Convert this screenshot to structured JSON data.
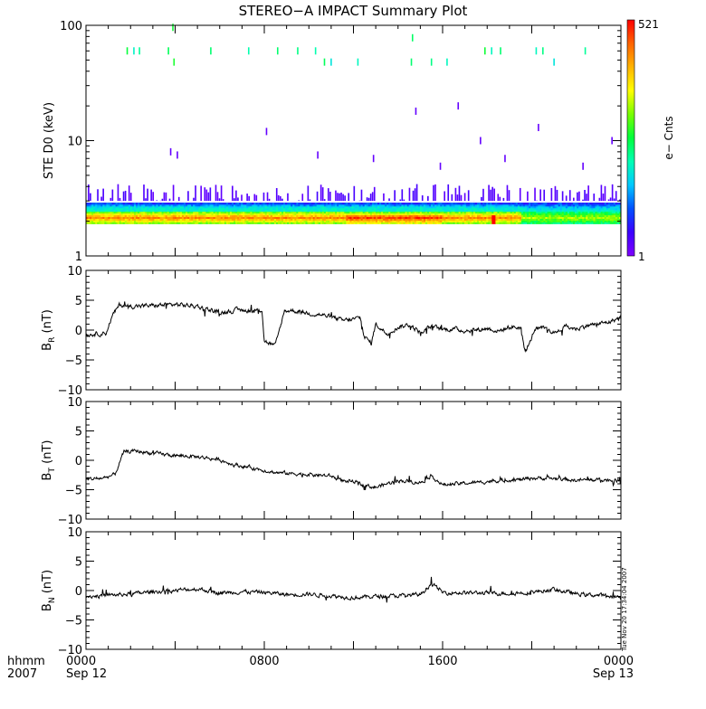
{
  "title": "STEREO−A IMPACT Summary Plot",
  "colorbar": {
    "max_label": "521",
    "min_label": "1",
    "label": "e− Cnts",
    "colors": [
      "#7f00ff",
      "#3c00ff",
      "#0050ff",
      "#00c8ff",
      "#00ffb4",
      "#00ff3c",
      "#78ff00",
      "#ffff00",
      "#ffb400",
      "#ff6400",
      "#ff0000"
    ]
  },
  "timestamp": "Tue Nov 20 17:34:04 2007",
  "x_axis": {
    "left_labels": [
      "hhmm",
      "2007"
    ],
    "ticks": [
      {
        "t": 0,
        "label": "0000",
        "sub": "Sep 12"
      },
      {
        "t": 8,
        "label": "0800",
        "sub": ""
      },
      {
        "t": 16,
        "label": "1600",
        "sub": ""
      },
      {
        "t": 24,
        "label": "0000",
        "sub": "Sep 13"
      }
    ],
    "range": [
      0,
      24
    ]
  },
  "chart_data": [
    {
      "type": "heatmap",
      "name": "spectrogram",
      "ylabel": "STE D0 (keV)",
      "yscale": "log",
      "ylim": [
        1,
        100
      ],
      "ytick_labels": [
        "1",
        "10",
        "100"
      ],
      "ytick_values": [
        1,
        10,
        100
      ],
      "band_energy_keV": [
        1.9,
        2.9
      ],
      "band_peak_keV": 2.15,
      "sparse_upper_keV": [
        3.0,
        4.2
      ],
      "count_range": [
        1,
        521
      ],
      "high_energy_events": [
        {
          "t": 1.85,
          "e": 60
        },
        {
          "t": 2.15,
          "e": 60
        },
        {
          "t": 2.4,
          "e": 60
        },
        {
          "t": 3.7,
          "e": 60
        },
        {
          "t": 3.95,
          "e": 48
        },
        {
          "t": 3.9,
          "e": 96
        },
        {
          "t": 5.6,
          "e": 60
        },
        {
          "t": 7.3,
          "e": 60
        },
        {
          "t": 8.6,
          "e": 60
        },
        {
          "t": 9.5,
          "e": 60
        },
        {
          "t": 10.3,
          "e": 60
        },
        {
          "t": 10.7,
          "e": 48
        },
        {
          "t": 11,
          "e": 48
        },
        {
          "t": 12.2,
          "e": 48
        },
        {
          "t": 14.6,
          "e": 48
        },
        {
          "t": 14.65,
          "e": 78
        },
        {
          "t": 15.5,
          "e": 48
        },
        {
          "t": 16.2,
          "e": 48
        },
        {
          "t": 17.9,
          "e": 60
        },
        {
          "t": 18.2,
          "e": 60
        },
        {
          "t": 18.6,
          "e": 60
        },
        {
          "t": 20.2,
          "e": 60
        },
        {
          "t": 20.5,
          "e": 60
        },
        {
          "t": 21,
          "e": 48
        },
        {
          "t": 22.4,
          "e": 60
        },
        {
          "t": 14.8,
          "e": 18
        },
        {
          "t": 16.7,
          "e": 20
        },
        {
          "t": 8.1,
          "e": 12
        },
        {
          "t": 20.3,
          "e": 13
        },
        {
          "t": 23.6,
          "e": 10
        },
        {
          "t": 17.7,
          "e": 10
        },
        {
          "t": 3.8,
          "e": 8
        },
        {
          "t": 4.1,
          "e": 7.5
        },
        {
          "t": 10.4,
          "e": 7.5
        },
        {
          "t": 12.9,
          "e": 7
        },
        {
          "t": 15.9,
          "e": 6
        },
        {
          "t": 18.8,
          "e": 7
        },
        {
          "t": 22.3,
          "e": 6
        }
      ]
    },
    {
      "type": "line",
      "name": "BR",
      "ylabel": "B",
      "ylabel_sub": "R",
      "ylabel_unit": "(nT)",
      "ylim": [
        -10,
        10
      ],
      "ytick_values": [
        -10,
        -5,
        0,
        5,
        10
      ],
      "ytick_labels": [
        "−10",
        "−5",
        "0",
        "5",
        "10"
      ],
      "x": [
        0,
        0.5,
        0.9,
        1.2,
        1.5,
        2,
        3,
        4,
        5,
        6,
        6.5,
        7,
        7.5,
        7.9,
        8.0,
        8.2,
        8.5,
        8.9,
        9.2,
        9.6,
        10,
        10.5,
        11,
        11.5,
        12,
        12.3,
        12.5,
        12.8,
        13,
        13.5,
        14,
        14.5,
        15,
        15.5,
        16,
        16.5,
        17,
        17.5,
        18,
        18.5,
        19,
        19.5,
        19.7,
        19.9,
        20.1,
        20.5,
        21,
        21.5,
        22,
        22.5,
        23,
        23.5,
        24
      ],
      "values": [
        -0.8,
        -0.6,
        -0.5,
        2.5,
        4.2,
        4.0,
        4.1,
        4.3,
        4.0,
        2.9,
        3.2,
        3.4,
        3.2,
        3.4,
        -1.8,
        -2.2,
        -2.6,
        3.2,
        3.3,
        3.1,
        2.8,
        2.6,
        2.2,
        1.6,
        1.8,
        2.1,
        -1.2,
        -2.2,
        1.0,
        -0.6,
        0.5,
        0.9,
        -0.4,
        0.6,
        0.1,
        0.2,
        -0.1,
        0.0,
        0.3,
        -0.2,
        0.5,
        0.4,
        -3.6,
        -2.4,
        0.0,
        0.3,
        -0.5,
        0.6,
        0.2,
        0.8,
        1.0,
        1.4,
        2.1
      ],
      "noise": 0.6
    },
    {
      "type": "line",
      "name": "BT",
      "ylabel": "B",
      "ylabel_sub": "T",
      "ylabel_unit": "(nT)",
      "ylim": [
        -10,
        10
      ],
      "ytick_values": [
        -10,
        -5,
        0,
        5,
        10
      ],
      "ytick_labels": [
        "−10",
        "−5",
        "0",
        "5",
        "10"
      ],
      "x": [
        0,
        0.8,
        1.3,
        1.7,
        2.2,
        3,
        4,
        5,
        6,
        6.5,
        7,
        7.5,
        8,
        8.5,
        9,
        10,
        11,
        11.5,
        12,
        12.5,
        13,
        13.5,
        14,
        15,
        15.5,
        16,
        17,
        17.5,
        18,
        19,
        19.5,
        20,
        21,
        22,
        23,
        24
      ],
      "values": [
        -3.2,
        -3.0,
        -2.4,
        1.4,
        1.6,
        1.2,
        0.8,
        0.6,
        0.1,
        -0.6,
        -1.0,
        -1.3,
        -1.7,
        -2.1,
        -2.2,
        -2.4,
        -2.7,
        -3.5,
        -3.6,
        -4.3,
        -4.6,
        -4.0,
        -3.4,
        -3.8,
        -2.6,
        -4.2,
        -3.9,
        -3.8,
        -3.6,
        -3.3,
        -3.3,
        -3.0,
        -3.1,
        -3.4,
        -3.3,
        -3.5
      ],
      "noise": 0.5
    },
    {
      "type": "line",
      "name": "BN",
      "ylabel": "B",
      "ylabel_sub": "N",
      "ylabel_unit": "(nT)",
      "ylim": [
        -10,
        10
      ],
      "ytick_values": [
        -10,
        -5,
        0,
        5,
        10
      ],
      "ytick_labels": [
        "−10",
        "−5",
        "0",
        "5",
        "10"
      ],
      "x": [
        0,
        1,
        2,
        3,
        4,
        5,
        6,
        7,
        8,
        9,
        10,
        11,
        12,
        13,
        14,
        15,
        15.5,
        16,
        17,
        18,
        19,
        20,
        21,
        22,
        23,
        24
      ],
      "values": [
        -1.0,
        -0.8,
        -0.6,
        -0.2,
        0.0,
        0.3,
        -0.4,
        -0.2,
        -0.3,
        -0.7,
        -0.6,
        -0.9,
        -1.2,
        -1.0,
        -0.9,
        -0.7,
        1.2,
        -0.3,
        -0.4,
        -0.4,
        -0.5,
        -0.3,
        0.2,
        -0.6,
        -0.8,
        -1.2
      ],
      "noise": 0.55
    }
  ]
}
